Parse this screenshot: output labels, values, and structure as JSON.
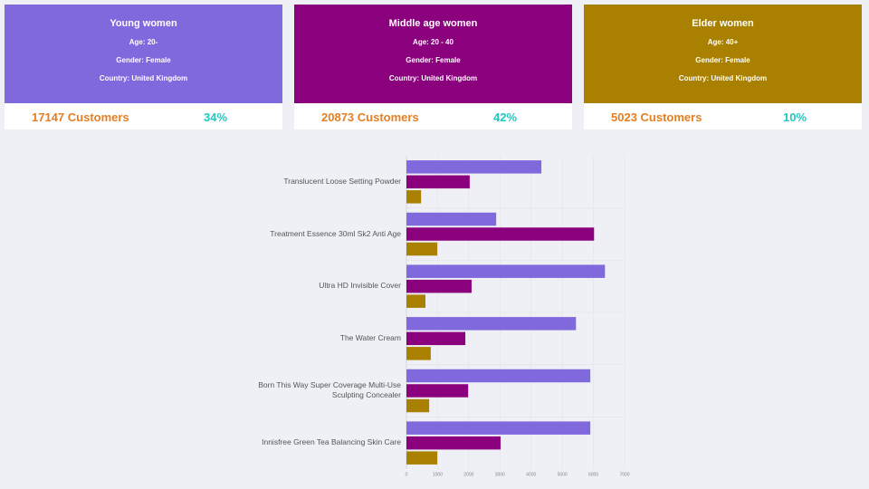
{
  "cards": [
    {
      "title": "Young women",
      "age": "Age: 20-",
      "gender": "Gender: Female",
      "country": "Country: United Kingdom",
      "customers": "17147 Customers",
      "share": "34%",
      "color": "#8068dd"
    },
    {
      "title": "Middle age women",
      "age": "Age: 20 - 40",
      "gender": "Gender: Female",
      "country": "Country: United Kingdom",
      "customers": "20873 Customers",
      "share": "42%",
      "color": "#8b007c"
    },
    {
      "title": "Elder women",
      "age": "Age: 40+",
      "gender": "Gender: Female",
      "country": "Country: United Kingdom",
      "customers": "5023 Customers",
      "share": "10%",
      "color": "#a98000"
    }
  ],
  "chart_data": {
    "type": "hbar",
    "categories": [
      "Translucent Loose Setting Powder",
      "Treatment Essence 30ml Sk2 Anti Age",
      "Ultra HD Invisible Cover",
      "The Water Cream",
      "Born This Way Super Coverage Multi-Use Sculpting Concealer",
      "Innisfree Green Tea Balancing Skin Care"
    ],
    "series": [
      {
        "color": "#8068dd",
        "values": [
          4330,
          2880,
          6370,
          5440,
          5900,
          5900
        ]
      },
      {
        "color": "#8b007c",
        "values": [
          2030,
          6020,
          2090,
          1890,
          1980,
          3020
        ]
      },
      {
        "color": "#a98000",
        "values": [
          470,
          990,
          610,
          780,
          730,
          990
        ]
      }
    ],
    "xlim": [
      0,
      7000
    ],
    "xticks": [
      0,
      1000,
      2000,
      3000,
      4000,
      5000,
      6000,
      7000
    ],
    "grid": true
  }
}
